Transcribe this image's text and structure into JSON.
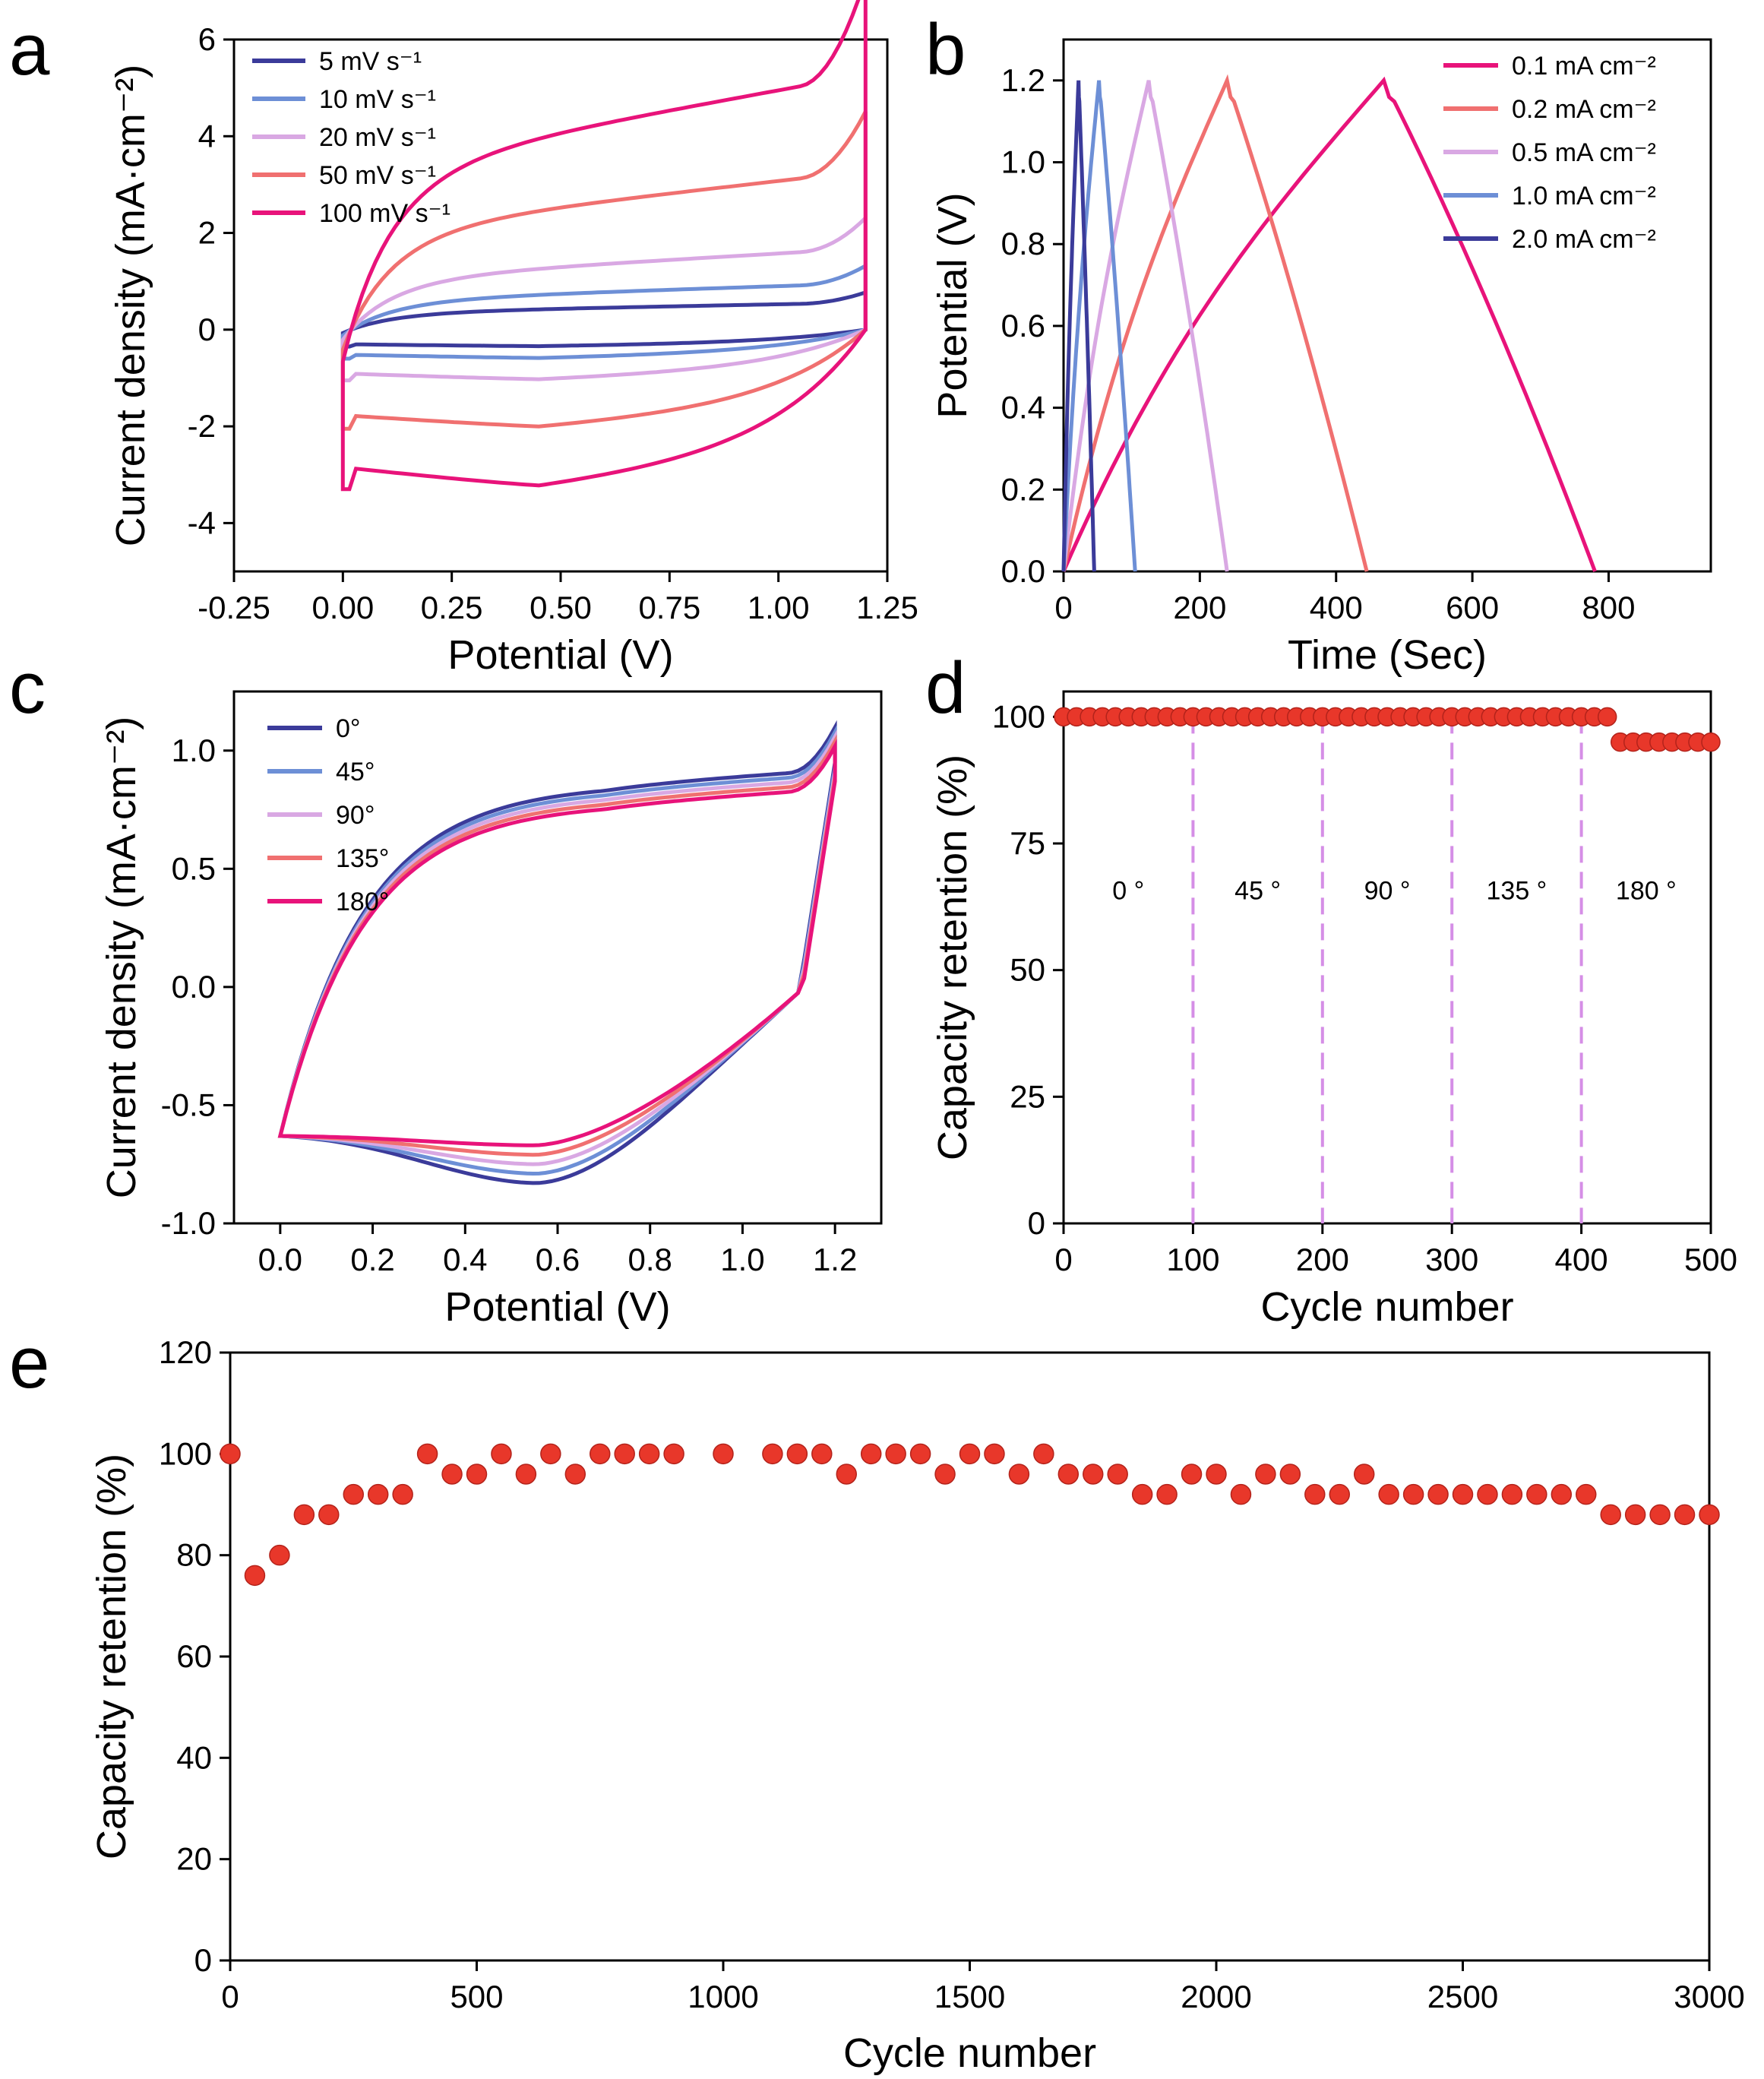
{
  "panels": {
    "a": "a",
    "b": "b",
    "c": "c",
    "d": "d",
    "e": "e"
  },
  "chart_data": [
    {
      "id": "a",
      "type": "line",
      "xlabel": "Potential (V)",
      "ylabel": "Current density (mA·cm⁻²)",
      "xlim": [
        -0.25,
        1.25
      ],
      "ylim": [
        -5,
        6
      ],
      "xticks": [
        "-0.25",
        "0.00",
        "0.25",
        "0.50",
        "0.75",
        "1.00",
        "1.25"
      ],
      "yticks": [
        "-4",
        "-2",
        "0",
        "2",
        "4",
        "6"
      ],
      "series": [
        {
          "name": "5 mV s⁻¹",
          "color": "#3b3b9a",
          "scale": 0.35
        },
        {
          "name": "10 mV s⁻¹",
          "color": "#6d8fd6",
          "scale": 0.6
        },
        {
          "name": "20 mV s⁻¹",
          "color": "#d9a8e3",
          "scale": 1.05
        },
        {
          "name": "50 mV s⁻¹",
          "color": "#f07070",
          "scale": 2.05
        },
        {
          "name": "100 mV s⁻¹",
          "color": "#e8137a",
          "scale": 3.3
        }
      ]
    },
    {
      "id": "b",
      "type": "line",
      "xlabel": "Time (Sec)",
      "ylabel": "Potential (V)",
      "xlim": [
        0,
        950
      ],
      "ylim": [
        0,
        1.3
      ],
      "xticks": [
        "0",
        "200",
        "400",
        "600",
        "800"
      ],
      "yticks": [
        "0.0",
        "0.2",
        "0.4",
        "0.6",
        "0.8",
        "1.0",
        "1.2"
      ],
      "series": [
        {
          "name": "0.1 mA cm⁻²",
          "color": "#e8137a",
          "t_peak": 470,
          "t_end": 780
        },
        {
          "name": "0.2 mA cm⁻²",
          "color": "#f07070",
          "t_peak": 240,
          "t_end": 445
        },
        {
          "name": "0.5 mA cm⁻²",
          "color": "#d9a8e3",
          "t_peak": 125,
          "t_end": 240
        },
        {
          "name": "1.0 mA cm⁻²",
          "color": "#6d8fd6",
          "t_peak": 52,
          "t_end": 105
        },
        {
          "name": "2.0 mA cm⁻²",
          "color": "#3b3b9a",
          "t_peak": 22,
          "t_end": 45
        }
      ]
    },
    {
      "id": "c",
      "type": "line",
      "xlabel": "Potential (V)",
      "ylabel": "Current density (mA·cm⁻²)",
      "xlim": [
        -0.1,
        1.3
      ],
      "ylim": [
        -1.0,
        1.25
      ],
      "xticks": [
        "0.0",
        "0.2",
        "0.4",
        "0.6",
        "0.8",
        "1.0",
        "1.2"
      ],
      "yticks": [
        "-1.0",
        "-0.5",
        "0.0",
        "0.5",
        "1.0"
      ],
      "series": [
        {
          "name": "0°",
          "color": "#3b3b9a"
        },
        {
          "name": "45°",
          "color": "#6d8fd6"
        },
        {
          "name": "90°",
          "color": "#d9a8e3"
        },
        {
          "name": "135°",
          "color": "#f07070"
        },
        {
          "name": "180°",
          "color": "#e8137a"
        }
      ]
    },
    {
      "id": "d",
      "type": "scatter",
      "xlabel": "Cycle number",
      "ylabel": "Capacity retention (%)",
      "xlim": [
        0,
        500
      ],
      "ylim": [
        0,
        105
      ],
      "xticks": [
        "0",
        "100",
        "200",
        "300",
        "400",
        "500"
      ],
      "yticks": [
        "0",
        "25",
        "50",
        "75",
        "100"
      ],
      "segments": [
        {
          "label": "0 °",
          "x_from": 0,
          "x_to": 100
        },
        {
          "label": "45 °",
          "x_from": 100,
          "x_to": 200
        },
        {
          "label": "90 °",
          "x_from": 200,
          "x_to": 300
        },
        {
          "label": "135 °",
          "x_from": 300,
          "x_to": 400
        },
        {
          "label": "180 °",
          "x_from": 400,
          "x_to": 500
        }
      ],
      "dividers": [
        100,
        200,
        300,
        400
      ],
      "x": [
        0,
        10,
        20,
        30,
        40,
        50,
        60,
        70,
        80,
        90,
        100,
        110,
        120,
        130,
        140,
        150,
        160,
        170,
        180,
        190,
        200,
        210,
        220,
        230,
        240,
        250,
        260,
        270,
        280,
        290,
        300,
        310,
        320,
        330,
        340,
        350,
        360,
        370,
        380,
        390,
        400,
        410,
        420,
        430,
        440,
        450,
        460,
        470,
        480,
        490,
        500
      ],
      "y": [
        100,
        100,
        100,
        100,
        100,
        100,
        100,
        100,
        100,
        100,
        100,
        100,
        100,
        100,
        100,
        100,
        100,
        100,
        100,
        100,
        100,
        100,
        100,
        100,
        100,
        100,
        100,
        100,
        100,
        100,
        100,
        100,
        100,
        100,
        100,
        100,
        100,
        100,
        100,
        100,
        100,
        100,
        100,
        95,
        95,
        95,
        95,
        95,
        95,
        95,
        95
      ],
      "color": "#e8372a"
    },
    {
      "id": "e",
      "type": "scatter",
      "xlabel": "Cycle number",
      "ylabel": "Capacity retention (%)",
      "xlim": [
        0,
        3000
      ],
      "ylim": [
        0,
        120
      ],
      "xticks": [
        "0",
        "500",
        "1000",
        "1500",
        "2000",
        "2500",
        "3000"
      ],
      "yticks": [
        "0",
        "20",
        "40",
        "60",
        "80",
        "100",
        "120"
      ],
      "x": [
        0,
        50,
        100,
        150,
        200,
        250,
        300,
        350,
        400,
        450,
        500,
        550,
        600,
        650,
        700,
        750,
        800,
        850,
        900,
        1000,
        1100,
        1150,
        1200,
        1250,
        1300,
        1350,
        1400,
        1450,
        1500,
        1550,
        1600,
        1650,
        1700,
        1750,
        1800,
        1850,
        1900,
        1950,
        2000,
        2050,
        2100,
        2150,
        2200,
        2250,
        2300,
        2350,
        2400,
        2450,
        2500,
        2550,
        2600,
        2650,
        2700,
        2750,
        2800,
        2850,
        2900,
        2950,
        3000
      ],
      "y": [
        100,
        76,
        80,
        88,
        88,
        92,
        92,
        92,
        100,
        96,
        96,
        100,
        96,
        100,
        96,
        100,
        100,
        100,
        100,
        100,
        100,
        100,
        100,
        96,
        100,
        100,
        100,
        96,
        100,
        100,
        96,
        100,
        96,
        96,
        96,
        92,
        92,
        96,
        96,
        92,
        96,
        96,
        92,
        92,
        96,
        92,
        92,
        92,
        92,
        92,
        92,
        92,
        92,
        92,
        88,
        88,
        88,
        88,
        88
      ],
      "color": "#e8372a"
    }
  ]
}
